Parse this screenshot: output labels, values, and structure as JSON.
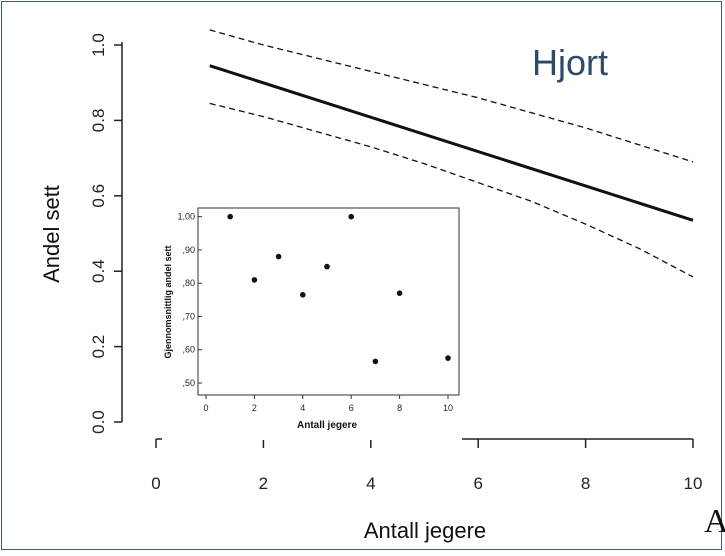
{
  "chart_data": [
    {
      "type": "line",
      "title": "Hjort",
      "xlabel": "Antall jegere",
      "ylabel": "Andel sett",
      "xlim": [
        0,
        10
      ],
      "ylim": [
        0,
        1
      ],
      "x_ticks": [
        "0",
        "2",
        "4",
        "6",
        "8",
        "10"
      ],
      "y_ticks": [
        "0.0",
        "0.2",
        "0.4",
        "0.6",
        "0.8",
        "1.0"
      ],
      "grid": false,
      "legend": "none",
      "series": [
        {
          "style": "solid",
          "x": [
            1,
            10
          ],
          "y": [
            0.945,
            0.535
          ]
        },
        {
          "style": "dashed",
          "x": [
            1,
            2,
            3,
            4,
            5,
            6,
            7,
            8,
            9,
            10
          ],
          "y": [
            1.04,
            1.0,
            0.965,
            0.93,
            0.895,
            0.86,
            0.82,
            0.78,
            0.735,
            0.69
          ]
        },
        {
          "style": "dashed",
          "x": [
            1,
            2,
            3,
            4,
            5,
            6,
            7,
            8,
            9,
            10
          ],
          "y": [
            0.845,
            0.81,
            0.77,
            0.73,
            0.685,
            0.635,
            0.585,
            0.525,
            0.46,
            0.385
          ]
        }
      ]
    },
    {
      "type": "scatter",
      "xlabel": "Antall jegere",
      "ylabel": "Gjennomsnittlig andel sett",
      "xlim": [
        0,
        10
      ],
      "ylim": [
        0.47,
        1.02
      ],
      "x_ticks": [
        "0",
        "2",
        "4",
        "6",
        "8",
        "10"
      ],
      "y_ticks": [
        ",50",
        ",60",
        ",70",
        ",80",
        ",90",
        "1,00"
      ],
      "y_tick_values": [
        0.5,
        0.6,
        0.7,
        0.8,
        0.9,
        1.0
      ],
      "grid": false,
      "legend": "none",
      "points": [
        {
          "x": 1,
          "y": 1.0
        },
        {
          "x": 2,
          "y": 0.81
        },
        {
          "x": 3,
          "y": 0.88
        },
        {
          "x": 4,
          "y": 0.765
        },
        {
          "x": 5,
          "y": 0.85
        },
        {
          "x": 6,
          "y": 1.0
        },
        {
          "x": 7,
          "y": 0.565
        },
        {
          "x": 8,
          "y": 0.77
        },
        {
          "x": 10,
          "y": 0.575
        }
      ]
    }
  ],
  "stray_glyph": "A"
}
